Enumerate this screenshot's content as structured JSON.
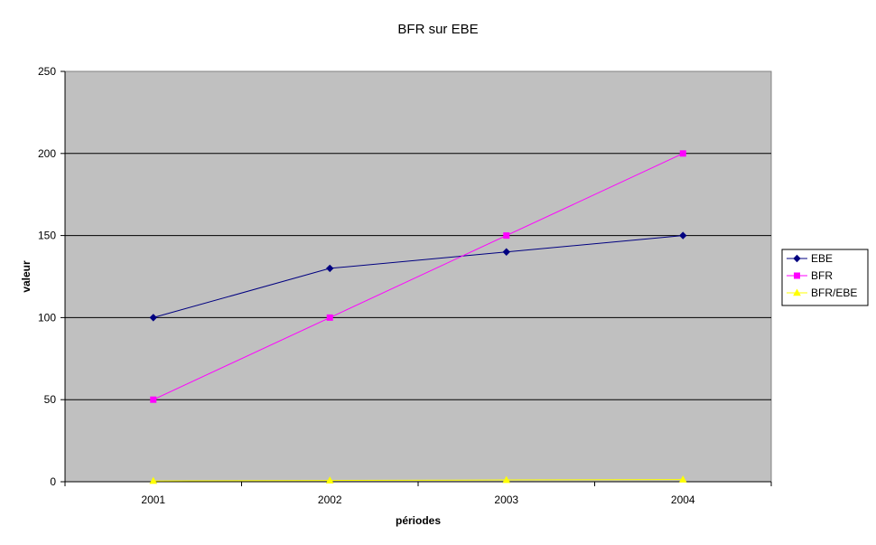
{
  "chart_data": {
    "type": "line",
    "title": "BFR sur EBE",
    "xlabel": "périodes",
    "ylabel": "valeur",
    "categories": [
      "2001",
      "2002",
      "2003",
      "2004"
    ],
    "ylim": [
      0,
      250
    ],
    "yticks": [
      0,
      50,
      100,
      150,
      200,
      250
    ],
    "grid": true,
    "legend": "right",
    "plot_background": "#c0c0c0",
    "series": [
      {
        "name": "EBE",
        "values": [
          100,
          130,
          140,
          150
        ],
        "color": "#000080",
        "marker": "diamond"
      },
      {
        "name": "BFR",
        "values": [
          50,
          100,
          150,
          200
        ],
        "color": "#ff00ff",
        "marker": "square"
      },
      {
        "name": "BFR/EBE",
        "values": [
          0.5,
          0.77,
          1.07,
          1.33
        ],
        "color": "#ffff00",
        "marker": "triangle"
      }
    ]
  }
}
